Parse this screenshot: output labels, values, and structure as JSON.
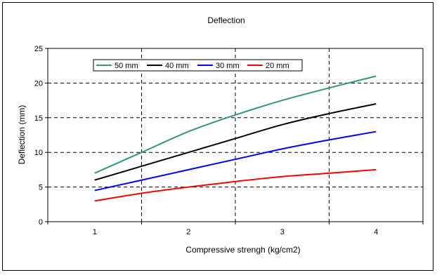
{
  "chart_data": {
    "type": "line",
    "title": "Deflection",
    "xlabel": "Compressive strengh (kg/cm2)",
    "ylabel": "Deflection (mm)",
    "x": [
      1,
      1.5,
      2,
      2.5,
      3,
      3.5,
      4
    ],
    "xticks": [
      1,
      2,
      3,
      4
    ],
    "ylim": [
      0,
      25
    ],
    "yticks": [
      0,
      5,
      10,
      15,
      20,
      25
    ],
    "grid": "dashed",
    "legend_position": "top-left",
    "series": [
      {
        "name": "50 mm",
        "color": "#339966",
        "values": [
          7,
          10,
          13,
          15.4,
          17.5,
          19.3,
          21
        ]
      },
      {
        "name": "40 mm",
        "color": "#000000",
        "values": [
          6,
          8,
          10,
          12,
          14,
          15.6,
          17
        ]
      },
      {
        "name": "30 mm",
        "color": "#0000ff",
        "values": [
          4.5,
          6,
          7.5,
          9,
          10.5,
          11.8,
          13
        ]
      },
      {
        "name": "20 mm",
        "color": "#ff0000",
        "values": [
          3,
          4.1,
          5,
          5.8,
          6.5,
          7,
          7.5
        ]
      }
    ]
  }
}
